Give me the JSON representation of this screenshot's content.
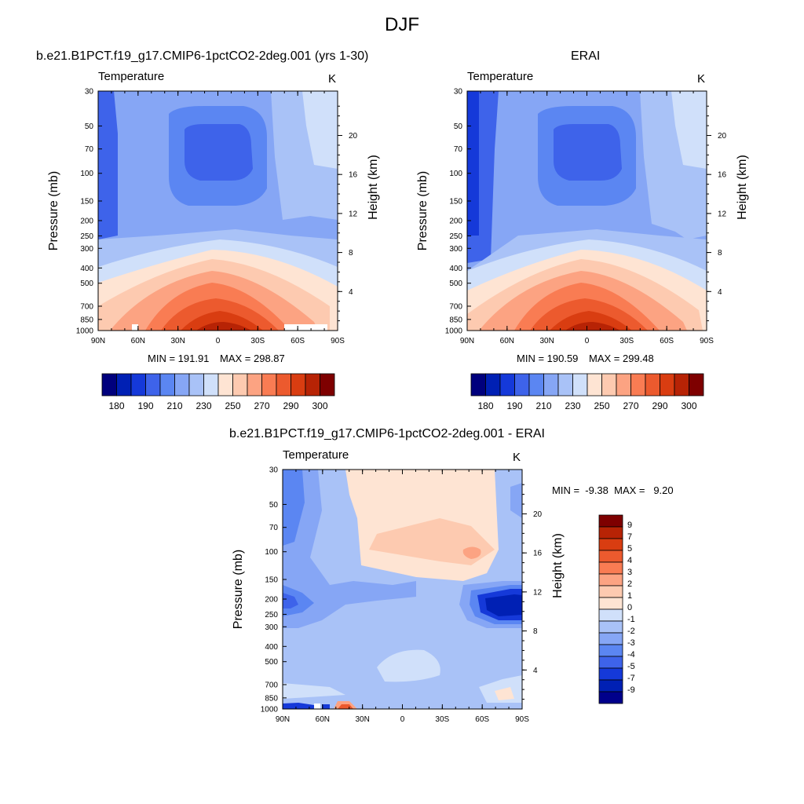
{
  "page": {
    "title": "DJF"
  },
  "colors": {
    "levels": [
      "#00007d",
      "#0020b4",
      "#1539d9",
      "#3e63ea",
      "#5b86f2",
      "#86a6f5",
      "#a9c2f7",
      "#d0e0fa",
      "#fee4d3",
      "#fdcab0",
      "#fca382",
      "#f97c53",
      "#ec5a2e",
      "#d93d11",
      "#b72305",
      "#7e0000"
    ],
    "diff_levels": [
      "#00008b",
      "#0020b4",
      "#1539d9",
      "#3e63ea",
      "#5b86f2",
      "#86a6f5",
      "#a9c2f7",
      "#d0e0fa",
      "#fee4d3",
      "#fdcab0",
      "#fca382",
      "#f97c53",
      "#ec5a2e",
      "#d93d11",
      "#b72305",
      "#7e0000"
    ],
    "axis": "#000000"
  },
  "panels": [
    {
      "id": "model",
      "title": "b.e21.B1PCT.f19_g17.CMIP6-1pctCO2-2deg.001 (yrs 1-30)",
      "left_label": "Temperature",
      "right_label": "K",
      "ylabel": "Pressure (mb)",
      "ylabel_right": "Height (km)",
      "min_label": "MIN = 191.91",
      "max_label": "MAX = 298.87",
      "cbar_labels": [
        "180",
        "190",
        "210",
        "230",
        "250",
        "270",
        "290",
        "300"
      ]
    },
    {
      "id": "erai",
      "title": "ERAI",
      "left_label": "Temperature",
      "right_label": "K",
      "ylabel": "Pressure (mb)",
      "ylabel_right": "Height (km)",
      "min_label": "MIN = 190.59",
      "max_label": "MAX = 299.48",
      "cbar_labels": [
        "180",
        "190",
        "210",
        "230",
        "250",
        "270",
        "290",
        "300"
      ]
    },
    {
      "id": "diff",
      "title": "b.e21.B1PCT.f19_g17.CMIP6-1pctCO2-2deg.001 - ERAI",
      "left_label": "Temperature",
      "right_label": "K",
      "ylabel": "Pressure (mb)",
      "ylabel_right": "Height (km)",
      "minmax_label": "MIN =  -9.38  MAX =   9.20",
      "cbar_labels": [
        "9",
        "7",
        "5",
        "4",
        "3",
        "2",
        "1",
        "0",
        "-1",
        "-2",
        "-3",
        "-4",
        "-5",
        "-7",
        "-9"
      ]
    }
  ],
  "chart_data": [
    {
      "type": "heatmap",
      "title": "b.e21.B1PCT.f19_g17.CMIP6-1pctCO2-2deg.001 (yrs 1-30)",
      "variable": "Temperature",
      "units": "K",
      "xlabel": "",
      "ylabel": "Pressure (mb)",
      "ylabel_right": "Height (km)",
      "x_ticks": [
        "90N",
        "60N",
        "30N",
        "0",
        "30S",
        "60S",
        "90S"
      ],
      "y_ticks": [
        30,
        50,
        70,
        100,
        150,
        200,
        250,
        300,
        400,
        500,
        700,
        850,
        1000
      ],
      "y_right_ticks": [
        4,
        8,
        12,
        16,
        20
      ],
      "y_scale": "log",
      "ylim": [
        1000,
        30
      ],
      "xlim": [
        90,
        -90
      ],
      "min": 191.91,
      "max": 298.87,
      "levels": [
        180,
        190,
        210,
        230,
        250,
        270,
        290,
        300
      ]
    },
    {
      "type": "heatmap",
      "title": "ERAI",
      "variable": "Temperature",
      "units": "K",
      "xlabel": "",
      "ylabel": "Pressure (mb)",
      "ylabel_right": "Height (km)",
      "x_ticks": [
        "90N",
        "60N",
        "30N",
        "0",
        "30S",
        "60S",
        "90S"
      ],
      "y_ticks": [
        30,
        50,
        70,
        100,
        150,
        200,
        250,
        300,
        400,
        500,
        700,
        850,
        1000
      ],
      "y_right_ticks": [
        4,
        8,
        12,
        16,
        20
      ],
      "y_scale": "log",
      "ylim": [
        1000,
        30
      ],
      "xlim": [
        90,
        -90
      ],
      "min": 190.59,
      "max": 299.48,
      "levels": [
        180,
        190,
        210,
        230,
        250,
        270,
        290,
        300
      ]
    },
    {
      "type": "heatmap",
      "title": "b.e21.B1PCT.f19_g17.CMIP6-1pctCO2-2deg.001 - ERAI",
      "variable": "Temperature",
      "units": "K",
      "xlabel": "",
      "ylabel": "Pressure (mb)",
      "ylabel_right": "Height (km)",
      "x_ticks": [
        "90N",
        "60N",
        "30N",
        "0",
        "30S",
        "60S",
        "90S"
      ],
      "y_ticks": [
        30,
        50,
        70,
        100,
        150,
        200,
        250,
        300,
        400,
        500,
        700,
        850,
        1000
      ],
      "y_right_ticks": [
        4,
        8,
        12,
        16,
        20
      ],
      "y_scale": "log",
      "ylim": [
        1000,
        30
      ],
      "xlim": [
        90,
        -90
      ],
      "min": -9.38,
      "max": 9.2,
      "levels": [
        9,
        7,
        5,
        4,
        3,
        2,
        1,
        0,
        -1,
        -2,
        -3,
        -4,
        -5,
        -7,
        -9
      ]
    }
  ]
}
